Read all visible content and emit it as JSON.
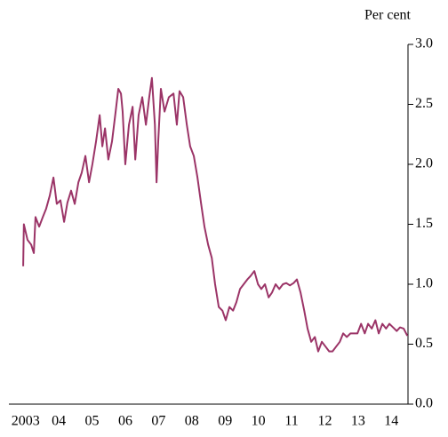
{
  "chart_data": {
    "type": "line",
    "y_axis_label": "Per cent",
    "color": "#9b3467",
    "xlim": [
      2003,
      2015
    ],
    "ylim": [
      0,
      3
    ],
    "xticks": [
      {
        "value": 2003.5,
        "label": "2003"
      },
      {
        "value": 2004.5,
        "label": "04"
      },
      {
        "value": 2005.5,
        "label": "05"
      },
      {
        "value": 2006.5,
        "label": "06"
      },
      {
        "value": 2007.5,
        "label": "07"
      },
      {
        "value": 2008.5,
        "label": "08"
      },
      {
        "value": 2009.5,
        "label": "09"
      },
      {
        "value": 2010.5,
        "label": "10"
      },
      {
        "value": 2011.5,
        "label": "11"
      },
      {
        "value": 2012.5,
        "label": "12"
      },
      {
        "value": 2013.5,
        "label": "13"
      },
      {
        "value": 2014.5,
        "label": "14"
      }
    ],
    "yticks": [
      {
        "value": 0,
        "label": "0.0"
      },
      0.5,
      {
        "value": 1,
        "label": "1.0"
      },
      1.5,
      {
        "value": 2,
        "label": "2.0"
      },
      2.5,
      {
        "value": 3,
        "label": "3.0"
      }
    ],
    "y_axis_side": "right",
    "x": [
      2003.43,
      2003.45,
      2003.56,
      2003.67,
      2003.75,
      2003.8,
      2003.91,
      2004.02,
      2004.12,
      2004.23,
      2004.34,
      2004.44,
      2004.55,
      2004.66,
      2004.76,
      2004.87,
      2004.98,
      2005.09,
      2005.19,
      2005.3,
      2005.41,
      2005.51,
      2005.62,
      2005.73,
      2005.81,
      2005.89,
      2005.99,
      2006.1,
      2006.21,
      2006.29,
      2006.37,
      2006.42,
      2006.5,
      2006.61,
      2006.72,
      2006.8,
      2006.9,
      2007.01,
      2007.12,
      2007.22,
      2007.3,
      2007.39,
      2007.44,
      2007.49,
      2007.57,
      2007.68,
      2007.81,
      2007.95,
      2008.05,
      2008.13,
      2008.24,
      2008.35,
      2008.45,
      2008.56,
      2008.67,
      2008.78,
      2008.88,
      2008.99,
      2009.1,
      2009.2,
      2009.31,
      2009.42,
      2009.52,
      2009.63,
      2009.74,
      2009.84,
      2009.95,
      2010.06,
      2010.17,
      2010.27,
      2010.38,
      2010.49,
      2010.59,
      2010.7,
      2010.81,
      2010.91,
      2011.02,
      2011.13,
      2011.24,
      2011.34,
      2011.45,
      2011.56,
      2011.66,
      2011.77,
      2011.88,
      2011.98,
      2012.09,
      2012.2,
      2012.3,
      2012.41,
      2012.52,
      2012.63,
      2012.73,
      2012.84,
      2012.95,
      2013.05,
      2013.16,
      2013.27,
      2013.37,
      2013.48,
      2013.59,
      2013.7,
      2013.8,
      2013.91,
      2014.02,
      2014.12,
      2014.23,
      2014.34,
      2014.44,
      2014.55,
      2014.66,
      2014.76,
      2014.87,
      2014.98
    ],
    "values": [
      1.15,
      1.5,
      1.37,
      1.33,
      1.26,
      1.56,
      1.48,
      1.56,
      1.63,
      1.74,
      1.89,
      1.67,
      1.7,
      1.52,
      1.68,
      1.78,
      1.67,
      1.85,
      1.93,
      2.07,
      1.85,
      2.0,
      2.19,
      2.41,
      2.15,
      2.3,
      2.04,
      2.19,
      2.44,
      2.63,
      2.59,
      2.44,
      2.0,
      2.33,
      2.48,
      2.04,
      2.41,
      2.56,
      2.33,
      2.56,
      2.72,
      2.33,
      1.85,
      2.19,
      2.63,
      2.44,
      2.56,
      2.59,
      2.33,
      2.61,
      2.56,
      2.33,
      2.15,
      2.07,
      1.89,
      1.67,
      1.48,
      1.33,
      1.22,
      1.0,
      0.81,
      0.78,
      0.7,
      0.81,
      0.78,
      0.85,
      0.96,
      1.0,
      1.04,
      1.07,
      1.11,
      1.0,
      0.96,
      1.0,
      0.89,
      0.93,
      1.0,
      0.96,
      1.0,
      1.01,
      0.99,
      1.01,
      1.04,
      0.93,
      0.78,
      0.63,
      0.52,
      0.56,
      0.44,
      0.52,
      0.48,
      0.44,
      0.44,
      0.48,
      0.52,
      0.59,
      0.56,
      0.59,
      0.59,
      0.59,
      0.67,
      0.59,
      0.67,
      0.63,
      0.7,
      0.59,
      0.67,
      0.63,
      0.67,
      0.64,
      0.61,
      0.64,
      0.63,
      0.57
    ]
  }
}
